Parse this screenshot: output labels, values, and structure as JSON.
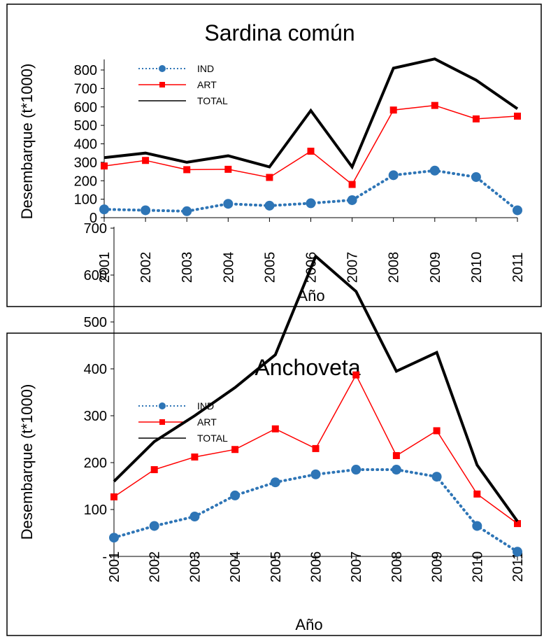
{
  "chart_data": [
    {
      "type": "line",
      "title": "Sardina común",
      "xlabel": "Año",
      "ylabel": "Desembarque (t*1000)",
      "categories": [
        "2001",
        "2002",
        "2003",
        "2004",
        "2005",
        "2006",
        "2007",
        "2008",
        "2009",
        "2010",
        "2011"
      ],
      "ylim": [
        0,
        850
      ],
      "yticks": [
        0,
        100,
        200,
        300,
        400,
        500,
        600,
        700,
        800
      ],
      "ytick_labels": [
        "0",
        "100",
        "200",
        "300",
        "400",
        "500",
        "600",
        "700",
        "800"
      ],
      "legend_position": "top-left",
      "series": [
        {
          "name": "IND",
          "color": "#2E75B6",
          "style": "dotted",
          "marker": "circle",
          "values": [
            45,
            40,
            35,
            75,
            65,
            78,
            95,
            230,
            255,
            220,
            40
          ]
        },
        {
          "name": "ART",
          "color": "#FF0000",
          "style": "solid",
          "marker": "square",
          "values": [
            280,
            310,
            260,
            262,
            218,
            360,
            180,
            583,
            608,
            535,
            550
          ]
        },
        {
          "name": "TOTAL",
          "color": "#000000",
          "style": "solid-thick",
          "marker": "none",
          "values": [
            325,
            350,
            300,
            335,
            275,
            580,
            275,
            810,
            860,
            745,
            590
          ]
        }
      ]
    },
    {
      "type": "line",
      "title": "Anchoveta",
      "xlabel": "Año",
      "ylabel": "Desembarque (t*1000)",
      "categories": [
        "2001",
        "2002",
        "2003",
        "2004",
        "2005",
        "2006",
        "2007",
        "2008",
        "2009",
        "2010",
        "2011"
      ],
      "ylim": [
        0,
        700
      ],
      "yticks": [
        0,
        100,
        200,
        300,
        400,
        500,
        600,
        700
      ],
      "ytick_labels": [
        "-",
        "100",
        "200",
        "300",
        "400",
        "500",
        "600",
        "700"
      ],
      "legend_position": "top-left",
      "series": [
        {
          "name": "IND",
          "color": "#2E75B6",
          "style": "dotted",
          "marker": "circle",
          "values": [
            40,
            65,
            85,
            130,
            158,
            175,
            185,
            185,
            170,
            65,
            10
          ]
        },
        {
          "name": "ART",
          "color": "#FF0000",
          "style": "solid",
          "marker": "square",
          "values": [
            127,
            185,
            212,
            228,
            272,
            230,
            387,
            215,
            268,
            133,
            70
          ]
        },
        {
          "name": "TOTAL",
          "color": "#000000",
          "style": "solid-thick",
          "marker": "none",
          "values": [
            160,
            245,
            300,
            360,
            430,
            640,
            565,
            395,
            435,
            195,
            75
          ]
        }
      ]
    }
  ]
}
